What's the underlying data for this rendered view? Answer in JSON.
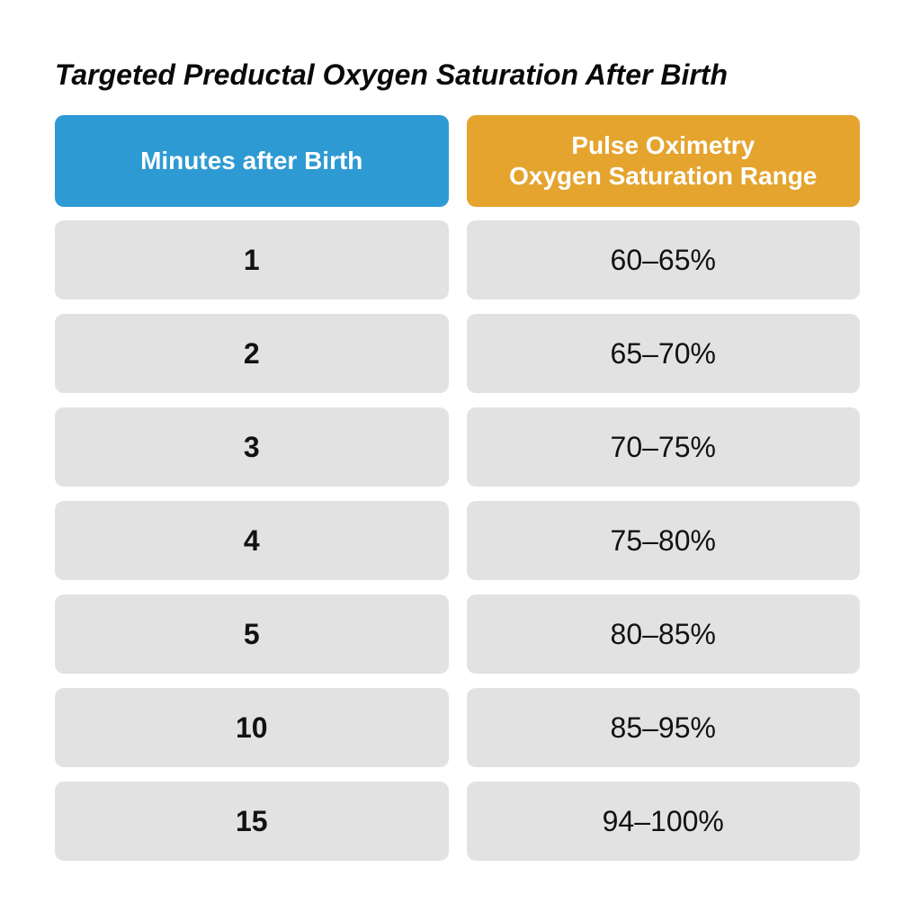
{
  "title": "Targeted Preductal Oxygen Saturation After Birth",
  "header": {
    "minutes_label": "Minutes after Birth",
    "range_label_line1": "Pulse Oximetry",
    "range_label_line2": "Oxygen Saturation Range"
  },
  "rows": [
    {
      "minutes": "1",
      "range": "60–65%"
    },
    {
      "minutes": "2",
      "range": "65–70%"
    },
    {
      "minutes": "3",
      "range": "70–75%"
    },
    {
      "minutes": "4",
      "range": "75–80%"
    },
    {
      "minutes": "5",
      "range": "80–85%"
    },
    {
      "minutes": "10",
      "range": "85–95%"
    },
    {
      "minutes": "15",
      "range": "94–100%"
    }
  ],
  "colors": {
    "minutes_header_bg": "#2E9AD4",
    "range_header_bg": "#E4A42E",
    "row_bg": "#E2E2E2",
    "header_text": "#FFFFFF",
    "body_text": "#121212",
    "title_text": "#0A0A0A",
    "page_bg": "#FFFFFF"
  },
  "chart_data": {
    "type": "table",
    "title": "Targeted Preductal Oxygen Saturation After Birth",
    "columns": [
      "Minutes after Birth",
      "Pulse Oximetry Oxygen Saturation Range"
    ],
    "rows": [
      [
        "1",
        "60–65%"
      ],
      [
        "2",
        "65–70%"
      ],
      [
        "3",
        "70–75%"
      ],
      [
        "4",
        "75–80%"
      ],
      [
        "5",
        "80–85%"
      ],
      [
        "10",
        "85–95%"
      ],
      [
        "15",
        "94–100%"
      ]
    ]
  }
}
